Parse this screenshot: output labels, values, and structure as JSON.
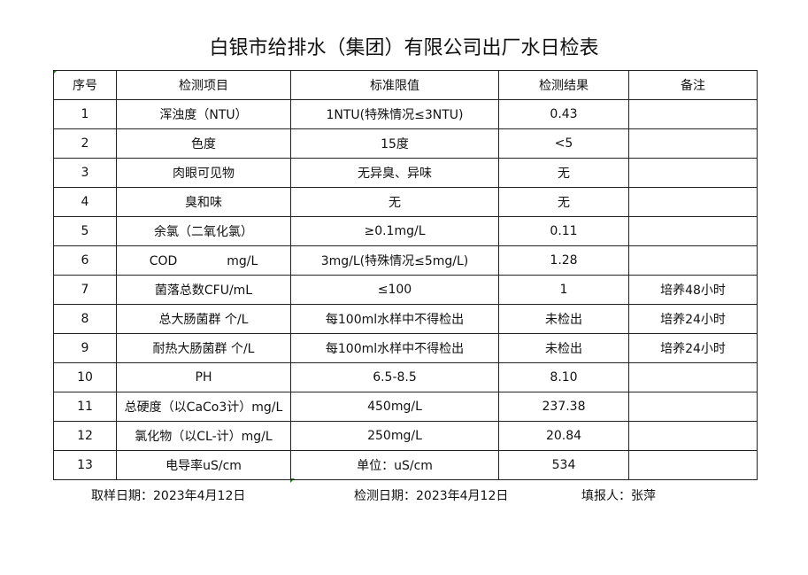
{
  "title": "白银市给排水（集团）有限公司出厂水日检表",
  "headers": [
    "序号",
    "检测项目",
    "标准限值",
    "检测结果",
    "备注"
  ],
  "rows": [
    [
      "1",
      "浑浊度（NTU）",
      "1NTU(特殊情况≤3NTU)",
      "0.43",
      ""
    ],
    [
      "2",
      "色度",
      "15度",
      "<5",
      ""
    ],
    [
      "3",
      "肉眼可见物",
      "无异臭、异味",
      "无",
      ""
    ],
    [
      "4",
      "臭和味",
      "无",
      "无",
      ""
    ],
    [
      "5",
      "余氯（二氧化氯）",
      "≥0.1mg/L",
      "0.11",
      ""
    ],
    [
      "6",
      "COD　　　　mg/L",
      "3mg/L(特殊情况≤5mg/L)",
      "1.28",
      ""
    ],
    [
      "7",
      "菌落总数CFU/mL",
      "≤100",
      "1",
      "培养48小时"
    ],
    [
      "8",
      "总大肠菌群 个/L",
      "每100ml水样中不得检出",
      "未检出",
      "培养24小时"
    ],
    [
      "9",
      "耐热大肠菌群 个/L",
      "每100ml水样中不得检出",
      "未检出",
      "培养24小时"
    ],
    [
      "10",
      "PH",
      "6.5-8.5",
      "8.10",
      ""
    ],
    [
      "11",
      "总硬度（以CaCo3计）mg/L",
      "450mg/L",
      "237.38",
      ""
    ],
    [
      "12",
      "氯化物（以CL-计）mg/L",
      "250mg/L",
      "20.84",
      ""
    ],
    [
      "13",
      "电导率uS/cm",
      "单位：uS/cm",
      "534",
      ""
    ]
  ],
  "footer": {
    "sampling_date": "取样日期：2023年4月12日",
    "test_date": "检测日期：2023年4月12日",
    "reporter": "填报人：张萍"
  }
}
